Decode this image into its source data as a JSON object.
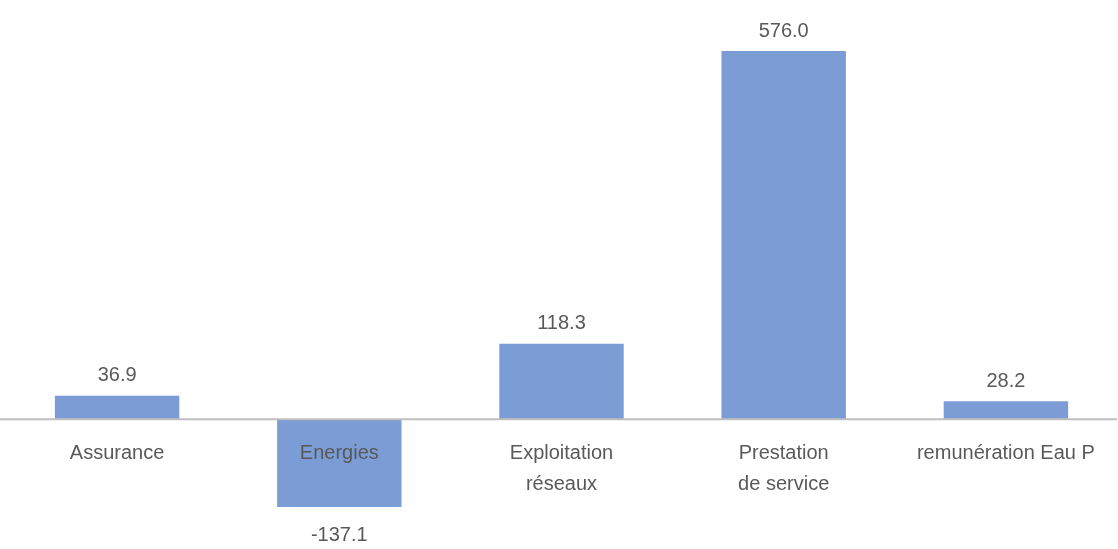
{
  "chart_data": {
    "type": "bar",
    "categories": [
      "Assurance",
      "Energies",
      "Exploitation réseaux",
      "Prestation de service",
      "remunération Eau P"
    ],
    "values": [
      36.9,
      -137.1,
      118.3,
      576.0,
      28.2
    ],
    "value_labels": [
      "36.9",
      "-137.1",
      "118.3",
      "576.0",
      "28.2"
    ],
    "color": "#7b9cd5"
  }
}
